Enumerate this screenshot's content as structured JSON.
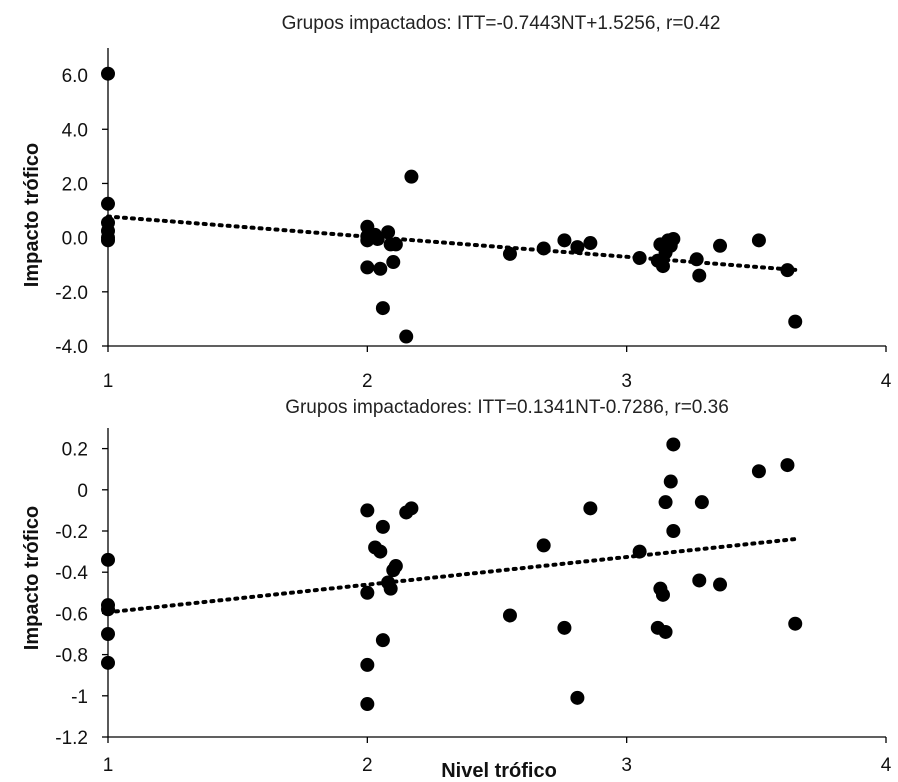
{
  "chart_data": [
    {
      "type": "scatter",
      "title": "Grupos impactados: ITT=-0.7443NT+1.5256, r=0.42",
      "xlabel": "",
      "ylabel": "Impacto trófico",
      "xlim": [
        1,
        4
      ],
      "ylim": [
        -4,
        7
      ],
      "xticks": [
        "1",
        "2",
        "3",
        "4"
      ],
      "yticks": [
        "-4.0",
        "-2.0",
        "0.0",
        "2.0",
        "4.0",
        "6.0"
      ],
      "ytick_values": [
        -4,
        -2,
        0,
        2,
        4,
        6
      ],
      "trendline": {
        "type": "linear",
        "slope": -0.7443,
        "intercept": 1.5256,
        "style": "dotted"
      },
      "grid": false,
      "points": [
        {
          "x": 1.0,
          "y": 6.05
        },
        {
          "x": 1.0,
          "y": 1.25
        },
        {
          "x": 1.0,
          "y": 0.55
        },
        {
          "x": 1.0,
          "y": 0.25
        },
        {
          "x": 1.0,
          "y": 0.0
        },
        {
          "x": 1.0,
          "y": -0.1
        },
        {
          "x": 2.0,
          "y": 0.4
        },
        {
          "x": 2.0,
          "y": 0.05
        },
        {
          "x": 2.0,
          "y": -0.1
        },
        {
          "x": 2.0,
          "y": -1.1
        },
        {
          "x": 2.03,
          "y": 0.1
        },
        {
          "x": 2.04,
          "y": -0.05
        },
        {
          "x": 2.05,
          "y": -1.15
        },
        {
          "x": 2.06,
          "y": -2.6
        },
        {
          "x": 2.08,
          "y": 0.2
        },
        {
          "x": 2.09,
          "y": -0.25
        },
        {
          "x": 2.1,
          "y": -0.9
        },
        {
          "x": 2.11,
          "y": -0.25
        },
        {
          "x": 2.15,
          "y": -3.65
        },
        {
          "x": 2.17,
          "y": 2.25
        },
        {
          "x": 2.55,
          "y": -0.6
        },
        {
          "x": 2.68,
          "y": -0.4
        },
        {
          "x": 2.76,
          "y": -0.1
        },
        {
          "x": 2.81,
          "y": -0.35
        },
        {
          "x": 2.86,
          "y": -0.2
        },
        {
          "x": 3.05,
          "y": -0.75
        },
        {
          "x": 3.12,
          "y": -0.85
        },
        {
          "x": 3.13,
          "y": -0.25
        },
        {
          "x": 3.14,
          "y": -1.05
        },
        {
          "x": 3.15,
          "y": -0.55
        },
        {
          "x": 3.16,
          "y": -0.1
        },
        {
          "x": 3.17,
          "y": -0.3
        },
        {
          "x": 3.18,
          "y": -0.05
        },
        {
          "x": 3.27,
          "y": -0.8
        },
        {
          "x": 3.28,
          "y": -1.4
        },
        {
          "x": 3.36,
          "y": -0.3
        },
        {
          "x": 3.51,
          "y": -0.1
        },
        {
          "x": 3.62,
          "y": -1.2
        },
        {
          "x": 3.65,
          "y": -3.1
        }
      ]
    },
    {
      "type": "scatter",
      "title": "Grupos impactadores: ITT=0.1341NT-0.7286, r=0.36",
      "xlabel": "Nivel trófico",
      "ylabel": "Impacto trófico",
      "xlim": [
        1,
        4
      ],
      "ylim": [
        -1.2,
        0.3
      ],
      "xticks": [
        "1",
        "2",
        "3",
        "4"
      ],
      "yticks": [
        "-1.2",
        "-1",
        "-0.8",
        "-0.6",
        "-0.4",
        "-0.2",
        "0",
        "0.2"
      ],
      "ytick_values": [
        -1.2,
        -1,
        -0.8,
        -0.6,
        -0.4,
        -0.2,
        0,
        0.2
      ],
      "trendline": {
        "type": "linear",
        "slope": 0.1341,
        "intercept": -0.7286,
        "style": "dotted"
      },
      "grid": false,
      "points": [
        {
          "x": 1.0,
          "y": -0.34
        },
        {
          "x": 1.0,
          "y": -0.56
        },
        {
          "x": 1.0,
          "y": -0.58
        },
        {
          "x": 1.0,
          "y": -0.7
        },
        {
          "x": 1.0,
          "y": -0.84
        },
        {
          "x": 2.0,
          "y": -0.1
        },
        {
          "x": 2.0,
          "y": -0.5
        },
        {
          "x": 2.0,
          "y": -0.85
        },
        {
          "x": 2.0,
          "y": -1.04
        },
        {
          "x": 2.03,
          "y": -0.28
        },
        {
          "x": 2.05,
          "y": -0.3
        },
        {
          "x": 2.06,
          "y": -0.18
        },
        {
          "x": 2.06,
          "y": -0.73
        },
        {
          "x": 2.08,
          "y": -0.45
        },
        {
          "x": 2.09,
          "y": -0.48
        },
        {
          "x": 2.1,
          "y": -0.39
        },
        {
          "x": 2.11,
          "y": -0.37
        },
        {
          "x": 2.15,
          "y": -0.11
        },
        {
          "x": 2.17,
          "y": -0.09
        },
        {
          "x": 2.55,
          "y": -0.61
        },
        {
          "x": 2.68,
          "y": -0.27
        },
        {
          "x": 2.76,
          "y": -0.67
        },
        {
          "x": 2.81,
          "y": -1.01
        },
        {
          "x": 2.86,
          "y": -0.09
        },
        {
          "x": 3.05,
          "y": -0.3
        },
        {
          "x": 3.12,
          "y": -0.67
        },
        {
          "x": 3.13,
          "y": -0.48
        },
        {
          "x": 3.14,
          "y": -0.51
        },
        {
          "x": 3.15,
          "y": -0.69
        },
        {
          "x": 3.15,
          "y": -0.06
        },
        {
          "x": 3.17,
          "y": 0.04
        },
        {
          "x": 3.18,
          "y": -0.2
        },
        {
          "x": 3.18,
          "y": 0.22
        },
        {
          "x": 3.28,
          "y": -0.44
        },
        {
          "x": 3.29,
          "y": -0.06
        },
        {
          "x": 3.36,
          "y": -0.46
        },
        {
          "x": 3.51,
          "y": 0.09
        },
        {
          "x": 3.62,
          "y": 0.12
        },
        {
          "x": 3.65,
          "y": -0.65
        }
      ]
    }
  ]
}
